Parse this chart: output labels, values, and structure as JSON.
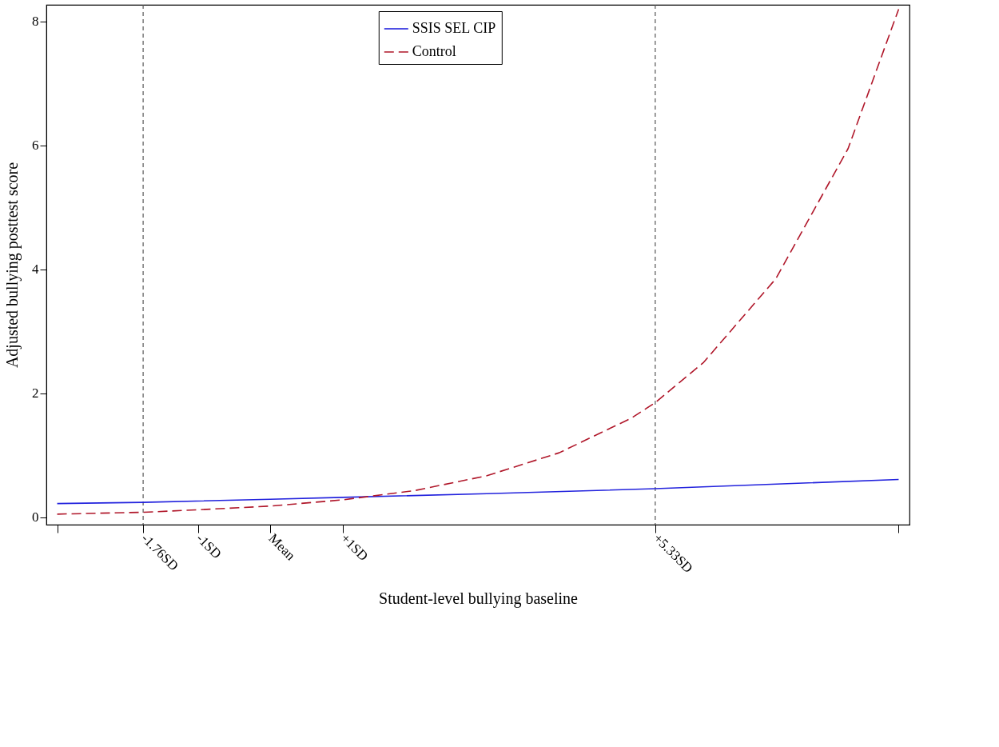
{
  "chart_data": {
    "type": "line",
    "xlabel": "Student-level bullying baseline",
    "ylabel": "Adjusted bullying posttest score",
    "xlim": [
      -3.1,
      8.85
    ],
    "ylim": [
      -0.12,
      8.27
    ],
    "xticks": [
      {
        "value": -2.95,
        "label": null
      },
      {
        "value": -1.76,
        "label": "-1.76SD"
      },
      {
        "value": -1,
        "label": "-1SD"
      },
      {
        "value": 0,
        "label": "Mean"
      },
      {
        "value": 1,
        "label": "+1SD"
      },
      {
        "value": 5.33,
        "label": "+5.33SD"
      },
      {
        "value": 8.7,
        "label": null
      }
    ],
    "yticks": [
      0,
      2,
      4,
      6,
      8
    ],
    "series": [
      {
        "name": "SSIS SEL CIP",
        "color": "#2222dd",
        "line_style": "solid",
        "x": [
          -2.95,
          -1.76,
          0,
          1,
          3,
          5.33,
          8.7
        ],
        "values": [
          0.22,
          0.24,
          0.29,
          0.32,
          0.38,
          0.46,
          0.61
        ]
      },
      {
        "name": "Control",
        "color": "#b0172a",
        "line_style": "dashed",
        "x": [
          -2.95,
          -1.76,
          -1,
          0,
          1,
          2,
          3,
          4,
          5,
          5.33,
          6,
          7,
          8,
          8.7
        ],
        "values": [
          0.05,
          0.08,
          0.12,
          0.18,
          0.28,
          0.43,
          0.67,
          1.04,
          1.6,
          1.85,
          2.5,
          3.85,
          5.95,
          8.2
        ]
      }
    ],
    "ref_lines": [
      {
        "axis": "x",
        "value": -1.76,
        "color": "#555555",
        "line_style": "dashed"
      },
      {
        "axis": "x",
        "value": 5.33,
        "color": "#555555",
        "line_style": "dashed"
      }
    ],
    "legend": "top",
    "grid": false
  }
}
